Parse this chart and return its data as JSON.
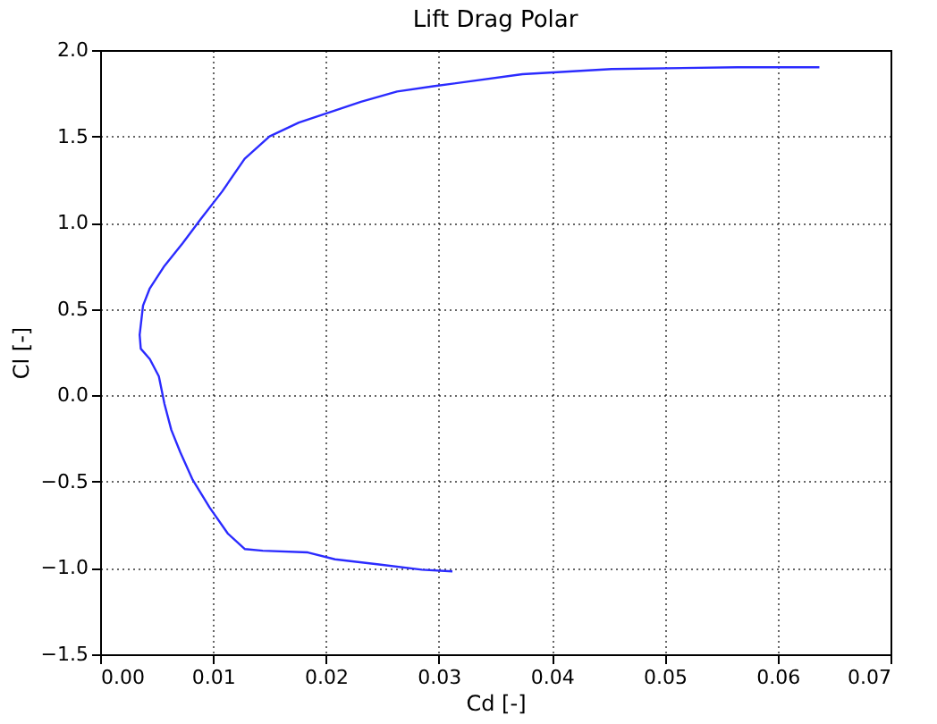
{
  "chart_data": {
    "type": "line",
    "title": "Lift Drag Polar",
    "xlabel": "Cd [-]",
    "ylabel": "Cl [-]",
    "xlim": [
      0,
      0.07
    ],
    "xticks": [
      {
        "value": 0,
        "label": "0.00"
      },
      {
        "value": 0.01,
        "label": "0.01"
      },
      {
        "value": 0.02,
        "label": "0.02"
      },
      {
        "value": 0.03,
        "label": "0.03"
      },
      {
        "value": 0.04,
        "label": "0.04"
      },
      {
        "value": 0.05,
        "label": "0.05"
      },
      {
        "value": 0.06,
        "label": "0.06"
      },
      {
        "value": 0.07,
        "label": "0.07"
      }
    ],
    "ylim": [
      -1.5,
      2.0
    ],
    "yticks": [
      {
        "value": -1.5,
        "label": "−1.5"
      },
      {
        "value": -1,
        "label": "−1.0"
      },
      {
        "value": -0.5,
        "label": "−0.5"
      },
      {
        "value": 0,
        "label": "0.0"
      },
      {
        "value": 0.5,
        "label": "0.5"
      },
      {
        "value": 1,
        "label": "1.0"
      },
      {
        "value": 1.5,
        "label": "1.5"
      },
      {
        "value": 2,
        "label": "2.0"
      }
    ],
    "grid": true,
    "line_style": "solid",
    "marker": "none",
    "series": [
      {
        "color": "#2b2bff",
        "x": [
          0.0637,
          0.0564,
          0.0453,
          0.0374,
          0.0295,
          0.0263,
          0.0231,
          0.0208,
          0.0176,
          0.015,
          0.0128,
          0.0108,
          0.0089,
          0.0073,
          0.0057,
          0.0044,
          0.0038,
          0.0035,
          0.0036,
          0.0044,
          0.0052,
          0.0057,
          0.0063,
          0.0071,
          0.0082,
          0.0097,
          0.0113,
          0.0128,
          0.0144,
          0.0184,
          0.0208,
          0.0247,
          0.0285,
          0.0312
        ],
        "values": [
          1.9,
          1.9,
          1.89,
          1.86,
          1.79,
          1.76,
          1.7,
          1.65,
          1.58,
          1.5,
          1.37,
          1.18,
          1.02,
          0.88,
          0.75,
          0.62,
          0.52,
          0.35,
          0.27,
          0.21,
          0.11,
          -0.05,
          -0.2,
          -0.33,
          -0.49,
          -0.65,
          -0.8,
          -0.89,
          -0.9,
          -0.91,
          -0.95,
          -0.98,
          -1.01,
          -1.02
        ]
      }
    ]
  }
}
